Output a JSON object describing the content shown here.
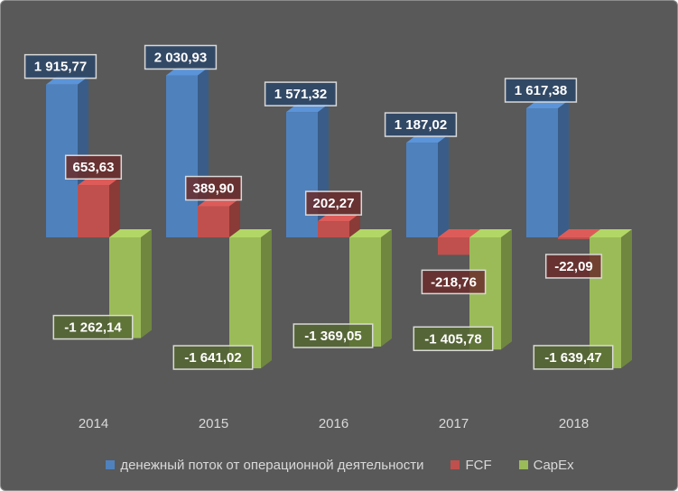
{
  "chart_data": {
    "type": "bar",
    "categories": [
      "2014",
      "2015",
      "2016",
      "2017",
      "2018"
    ],
    "series": [
      {
        "name": "денежный поток от операционной деятельности",
        "values": [
          1915.77,
          2030.93,
          1571.32,
          1187.02,
          1617.38
        ],
        "labels": [
          "1 915,77",
          "2 030,93",
          "1 571,32",
          "1 187,02",
          "1 617,38"
        ],
        "color": "#4f81bd"
      },
      {
        "name": "FCF",
        "values": [
          653.63,
          389.9,
          202.27,
          -218.76,
          -22.09
        ],
        "labels": [
          "653,63",
          "389,90",
          "202,27",
          "-218,76",
          "-22,09"
        ],
        "color": "#c0504d"
      },
      {
        "name": "CapEx",
        "values": [
          -1262.14,
          -1641.02,
          -1369.05,
          -1405.78,
          -1639.47
        ],
        "labels": [
          "-1 262,14",
          "-1 641,02",
          "-1 369,05",
          "-1 405,78",
          "-1 639,47"
        ],
        "color": "#9bbb59"
      }
    ],
    "legend_position": "bottom",
    "grid": false,
    "style": "3d-column"
  }
}
